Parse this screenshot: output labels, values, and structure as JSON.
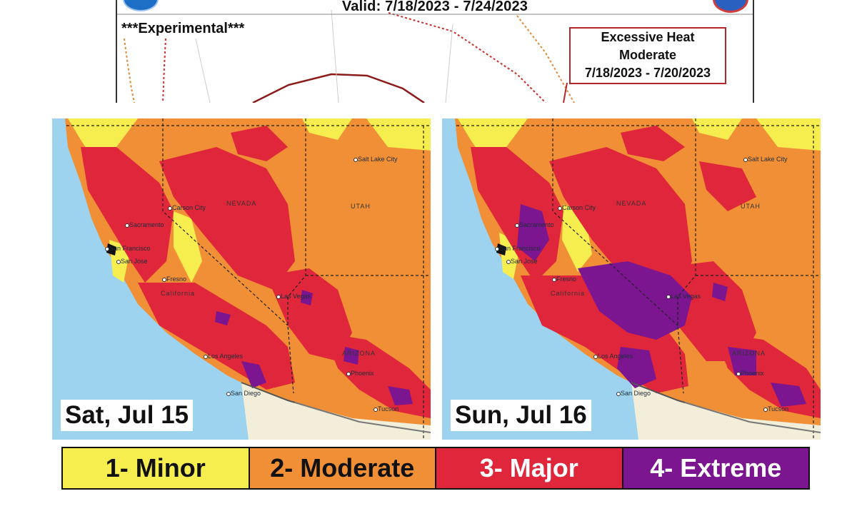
{
  "top_panel": {
    "valid_text": "Valid: 7/18/2023 - 7/24/2023",
    "experimental_text": "***Experimental***",
    "heat_box": {
      "line1": "Excessive Heat",
      "line2": "Moderate",
      "line3": "7/18/2023 - 7/20/2023"
    }
  },
  "maps": [
    {
      "date_label": "Sat, Jul 15",
      "cities": [
        "Salt Lake City",
        "Carson City",
        "Sacramento",
        "San Francisco",
        "San Jose",
        "Fresno",
        "Las Vegas",
        "Los Angeles",
        "San Diego",
        "Phoenix",
        "Tucson"
      ],
      "states": [
        "NEVADA",
        "UTAH",
        "California",
        "ARIZONA"
      ]
    },
    {
      "date_label": "Sun, Jul 16",
      "cities": [
        "Salt Lake City",
        "Carson City",
        "Sacramento",
        "San Francisco",
        "San Jose",
        "Fresno",
        "Las Vegas",
        "Los Angeles",
        "San Diego",
        "Phoenix",
        "Tucson"
      ],
      "states": [
        "NEVADA",
        "UTAH",
        "California",
        "ARIZONA"
      ]
    }
  ],
  "legend": [
    {
      "label": "1- Minor",
      "color": "#f6ee4e",
      "text_color": "#111111"
    },
    {
      "label": "2- Moderate",
      "color": "#f08f36",
      "text_color": "#111111"
    },
    {
      "label": "3- Major",
      "color": "#e0263a",
      "text_color": "#ffffff"
    },
    {
      "label": "4- Extreme",
      "color": "#7b1590",
      "text_color": "#ffffff"
    }
  ],
  "colors": {
    "ocean": "#9dd3ef",
    "minor": "#f6ee4e",
    "moderate": "#f08f36",
    "major": "#e0263a",
    "extreme": "#7b1590",
    "land_outside": "#f3eed9"
  }
}
